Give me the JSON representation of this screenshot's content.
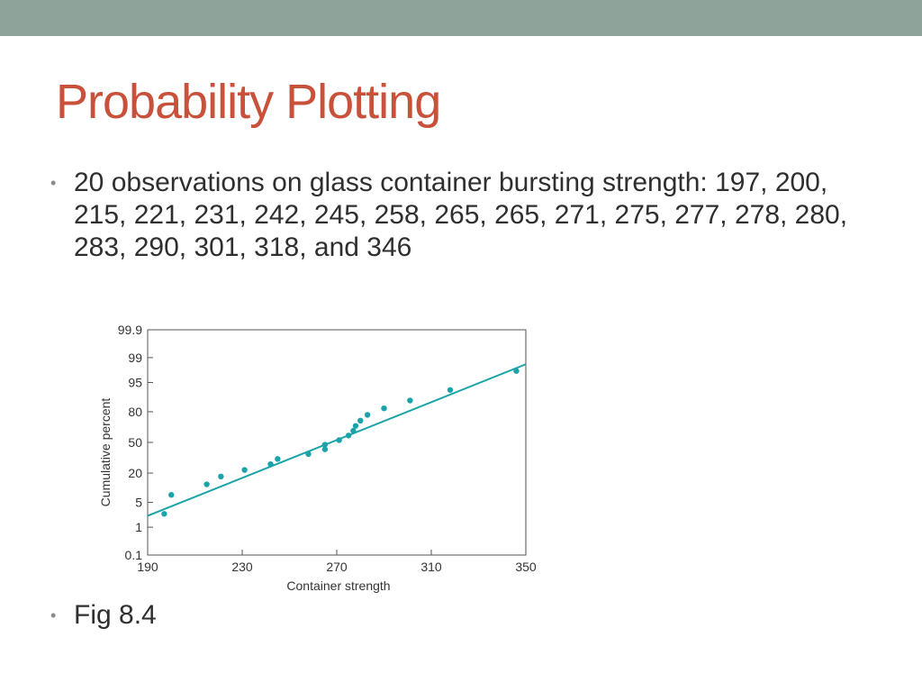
{
  "slide": {
    "title": "Probability Plotting",
    "bullets": [
      "20 observations on glass container bursting strength: 197, 200, 215, 221, 231, 242, 245, 258, 265, 265, 271, 275, 277, 278, 280, 283, 290, 301, 318, and 346",
      "Fig 8.4"
    ],
    "bullet_glyph": "•"
  },
  "colors": {
    "title": "#c8513b",
    "top_bar": "#8ea39a",
    "marker": "#1aa3a8",
    "fit_line": "#1aa3a8"
  },
  "chart_data": {
    "type": "scatter",
    "title": "",
    "xlabel": "Container strength",
    "ylabel": "Cumulative percent",
    "y_scale": "normal-probability",
    "xlim": [
      190,
      350
    ],
    "x_ticks": [
      190,
      230,
      270,
      310,
      350
    ],
    "y_ticks": [
      0.1,
      1,
      5,
      20,
      50,
      80,
      95,
      99,
      99.9
    ],
    "y_tick_labels": [
      "0.1",
      "1",
      "5",
      "20",
      "50",
      "80",
      "95",
      "99",
      "99.9"
    ],
    "grid": false,
    "series": [
      {
        "points": [
          {
            "x": 197,
            "y": 2.5
          },
          {
            "x": 200,
            "y": 7.5
          },
          {
            "x": 215,
            "y": 12.5
          },
          {
            "x": 221,
            "y": 17.5
          },
          {
            "x": 231,
            "y": 22.5
          },
          {
            "x": 242,
            "y": 27.5
          },
          {
            "x": 245,
            "y": 32.5
          },
          {
            "x": 258,
            "y": 37.5
          },
          {
            "x": 265,
            "y": 42.5
          },
          {
            "x": 265,
            "y": 47.5
          },
          {
            "x": 271,
            "y": 52.5
          },
          {
            "x": 275,
            "y": 57.5
          },
          {
            "x": 277,
            "y": 62.5
          },
          {
            "x": 278,
            "y": 67.5
          },
          {
            "x": 280,
            "y": 72.5
          },
          {
            "x": 283,
            "y": 77.5
          },
          {
            "x": 290,
            "y": 82.5
          },
          {
            "x": 301,
            "y": 87.5
          },
          {
            "x": 318,
            "y": 92.5
          },
          {
            "x": 346,
            "y": 97.5
          }
        ]
      }
    ],
    "fit_line": [
      {
        "x": 190,
        "y": 2.2
      },
      {
        "x": 350,
        "y": 98.4
      }
    ]
  }
}
